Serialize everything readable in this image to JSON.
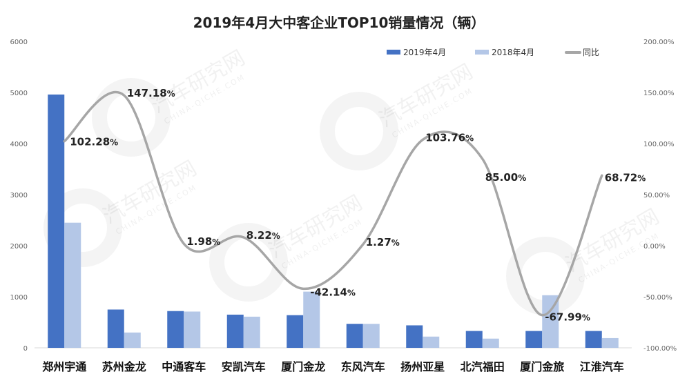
{
  "watermark": {
    "text": "汽车研究网",
    "subtext": "CHINA-QICHE.COM"
  },
  "chart_data": {
    "type": "bar",
    "title": "2019年4月大中客企业TOP10销量情况（辆）",
    "categories": [
      "郑州宇通",
      "苏州金龙",
      "中通客车",
      "安凯汽车",
      "厦门金龙",
      "东风汽车",
      "扬州亚星",
      "北汽福田",
      "厦门金旅",
      "江淮汽车"
    ],
    "series": [
      {
        "name": "2019年4月",
        "type": "bar",
        "axis": "left",
        "color": "#4472C4",
        "values": [
          4960,
          750,
          720,
          650,
          640,
          470,
          440,
          330,
          330,
          330
        ]
      },
      {
        "name": "2018年4月",
        "type": "bar",
        "axis": "left",
        "color": "#B4C7E7",
        "values": [
          2450,
          300,
          710,
          610,
          1100,
          470,
          220,
          180,
          1030,
          190
        ]
      },
      {
        "name": "同比",
        "type": "line",
        "axis": "right",
        "color": "#A6A6A6",
        "values": [
          102.28,
          147.18,
          1.98,
          8.22,
          -42.14,
          1.27,
          103.76,
          85.0,
          -67.99,
          68.72
        ],
        "labels": [
          "102.28",
          "147.18",
          "1.98",
          "8.22",
          "-42.14",
          "1.27",
          "103.76",
          "85.00",
          "-67.99",
          "68.72"
        ],
        "label_suffix": "%"
      }
    ],
    "ylim": [
      0,
      6000
    ],
    "yticks": [
      0,
      1000,
      2000,
      3000,
      4000,
      5000,
      6000
    ],
    "ytick_labels": [
      "0",
      "1000",
      "2000",
      "3000",
      "4000",
      "5000",
      "6000"
    ],
    "y2lim": [
      -100,
      200
    ],
    "y2ticks": [
      -100,
      -50,
      0,
      50,
      100,
      150,
      200
    ],
    "y2tick_labels": [
      "-100.00%",
      "-50.00%",
      "0.00%",
      "50.00%",
      "100.00%",
      "150.00%",
      "200.00%"
    ],
    "grid": false,
    "legend": "top-right"
  }
}
